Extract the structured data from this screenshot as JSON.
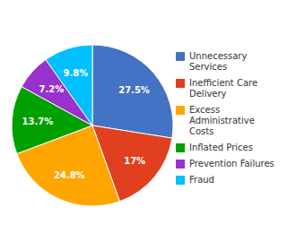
{
  "chart_data": {
    "type": "pie",
    "categories": [
      "Unnecessary\nServices",
      "Inefficient Care\nDelivery",
      "Excess\nAdministrative\nCosts",
      "Inflated Prices",
      "Prevention Failures",
      "Fraud"
    ],
    "values": [
      27.5,
      17,
      24.8,
      13.7,
      7.2,
      9.8
    ],
    "value_labels": [
      "27.5%",
      "17%",
      "24.8%",
      "13.7%",
      "7.2%",
      "9.8%"
    ],
    "colors": [
      "#4472C4",
      "#E04020",
      "#FFA500",
      "#00A000",
      "#9932CC",
      "#00BFFF"
    ],
    "data_labels": true,
    "legend": "right"
  }
}
